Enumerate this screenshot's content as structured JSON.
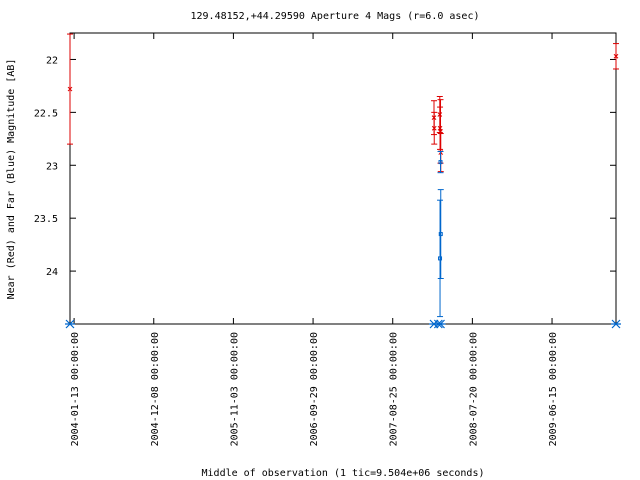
{
  "chart_data": {
    "type": "scatter",
    "title": "129.48152,+44.29590   Aperture 4 Mags (r=6.0 asec)",
    "xlabel": "Middle of observation (1 tic=9.504e+06 seconds)",
    "ylabel": "Near (Red) and Far (Blue) Magnitude [AB]",
    "ylim": [
      24.5,
      21.75
    ],
    "y_inverted": true,
    "xlim": [
      "2003-12-27",
      "2010-03-07"
    ],
    "x_ticks": [
      "2004-01-13 00:00:00",
      "2004-12-08 00:00:00",
      "2005-11-03 00:00:00",
      "2006-09-29 00:00:00",
      "2007-08-25 00:00:00",
      "2008-07-20 00:00:00",
      "2009-06-15 00:00:00"
    ],
    "y_ticks": [
      "22",
      "22.5",
      "23",
      "23.5",
      "24"
    ],
    "grid": false,
    "series": [
      {
        "name": "Near",
        "color": "#dd0000",
        "marker": "x",
        "points": [
          {
            "x": "2003-12-27",
            "y": 22.28,
            "err": 0.52
          },
          {
            "x": "2008-02-12",
            "y": 22.55,
            "err": 0.16
          },
          {
            "x": "2008-02-13",
            "y": 22.65,
            "err": 0.15
          },
          {
            "x": "2008-03-07",
            "y": 22.52,
            "err": 0.17
          },
          {
            "x": "2008-03-08",
            "y": 22.65,
            "err": 0.2
          },
          {
            "x": "2008-03-10",
            "y": 22.68,
            "err": 0.3
          },
          {
            "x": "2008-03-11",
            "y": 22.88,
            "err": 0.18
          },
          {
            "x": "2010-03-07",
            "y": 21.97,
            "err": 0.12
          }
        ]
      },
      {
        "name": "Far",
        "color": "#0066cc",
        "marker": "square",
        "points": [
          {
            "x": "2008-03-08",
            "y": 23.88,
            "err": 0.55
          },
          {
            "x": "2008-03-11",
            "y": 23.65,
            "err": 0.42
          },
          {
            "x": "2008-03-10",
            "y": 22.97,
            "err": 0.1
          }
        ]
      }
    ],
    "baseline_marker_dates": [
      "2003-12-27",
      "2008-02-12",
      "2008-03-01",
      "2008-03-10",
      "2010-03-07"
    ],
    "baseline_marker_color": "#0066cc"
  }
}
